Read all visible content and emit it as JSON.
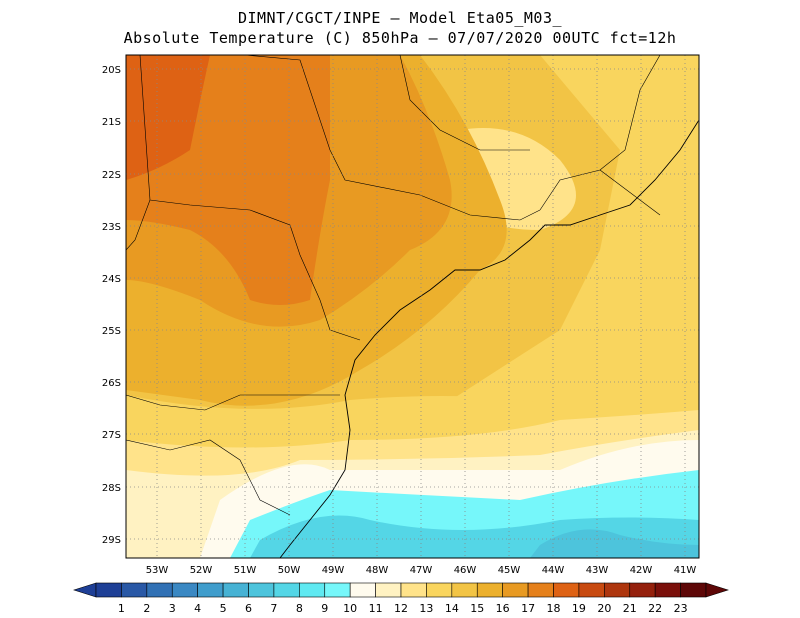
{
  "header": {
    "title_line1": "DIMNT/CGCT/INPE –  Model Eta05_M03_",
    "title_line2": "Absolute Temperature (C) 850hPa –  07/07/2020 00UTC fct=12h"
  },
  "map": {
    "lat_labels": [
      "20S",
      "21S",
      "22S",
      "23S",
      "24S",
      "25S",
      "26S",
      "27S",
      "28S",
      "29S"
    ],
    "lon_labels": [
      "53W",
      "52W",
      "51W",
      "50W",
      "49W",
      "48W",
      "47W",
      "46W",
      "45W",
      "44W",
      "43W",
      "42W",
      "41W"
    ],
    "grid": "dotted",
    "field": "temperature-shading"
  },
  "colorbar": {
    "labels": [
      "1",
      "2",
      "3",
      "4",
      "5",
      "6",
      "7",
      "8",
      "9",
      "10",
      "11",
      "12",
      "13",
      "14",
      "15",
      "16",
      "17",
      "18",
      "19",
      "20",
      "21",
      "22",
      "23"
    ],
    "colors": [
      "#1e3f96",
      "#2958a6",
      "#3171b5",
      "#3a88c3",
      "#3f9dcc",
      "#46b2d4",
      "#4dc4dc",
      "#54d6e6",
      "#5fe9f1",
      "#76f7fa",
      "#fffbee",
      "#fff2c2",
      "#ffe38a",
      "#f9d55e",
      "#f2c445",
      "#ecb02d",
      "#e89a22",
      "#e5801b",
      "#de6214",
      "#c84a10",
      "#ae360e",
      "#94200c",
      "#7a0f0a",
      "#5e0707"
    ],
    "arrow_left_color": "#1e3f96",
    "arrow_right_color": "#5e0707"
  }
}
